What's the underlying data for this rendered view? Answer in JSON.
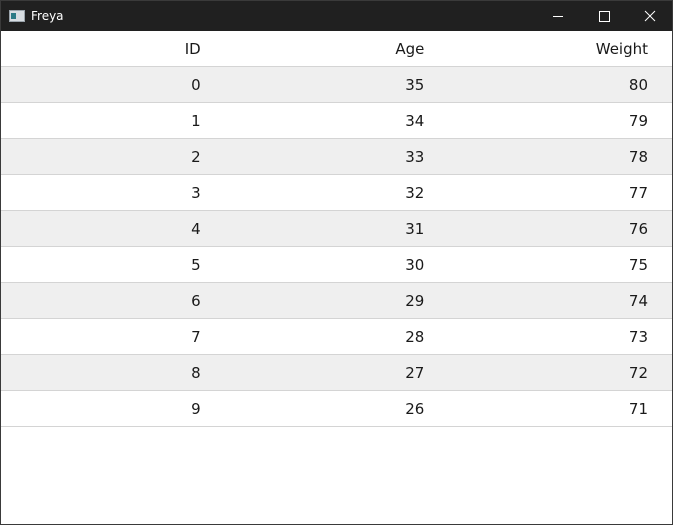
{
  "window": {
    "title": "Freya"
  },
  "table": {
    "columns": [
      "ID",
      "Age",
      "Weight"
    ],
    "rows": [
      [
        0,
        35,
        80
      ],
      [
        1,
        34,
        79
      ],
      [
        2,
        33,
        78
      ],
      [
        3,
        32,
        77
      ],
      [
        4,
        31,
        76
      ],
      [
        5,
        30,
        75
      ],
      [
        6,
        29,
        74
      ],
      [
        7,
        28,
        73
      ],
      [
        8,
        27,
        72
      ],
      [
        9,
        26,
        71
      ]
    ]
  }
}
